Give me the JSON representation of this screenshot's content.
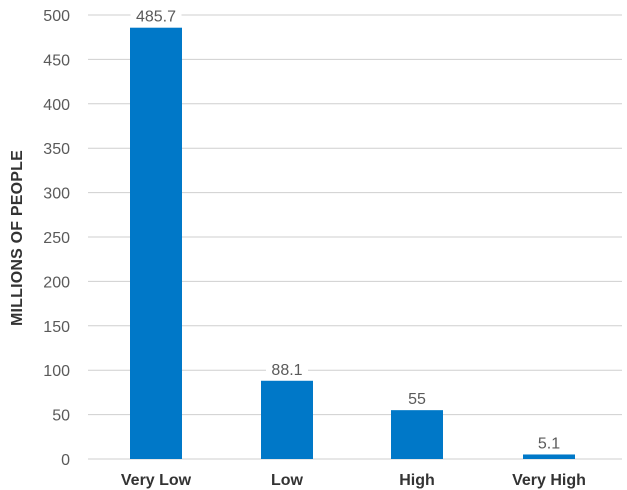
{
  "chart_data": {
    "type": "bar",
    "categories": [
      "Very Low",
      "Low",
      "High",
      "Very High"
    ],
    "values": [
      485.7,
      88.1,
      55,
      5.1
    ],
    "data_labels": [
      "485.7",
      "88.1",
      "55",
      "5.1"
    ],
    "title": "",
    "xlabel": "",
    "ylabel": "MILLIONS OF PEOPLE",
    "ylim": [
      0,
      500
    ],
    "yticks": [
      0,
      50,
      100,
      150,
      200,
      250,
      300,
      350,
      400,
      450,
      500
    ],
    "grid": true,
    "legend": "none",
    "bar_color": "#0078c8"
  }
}
